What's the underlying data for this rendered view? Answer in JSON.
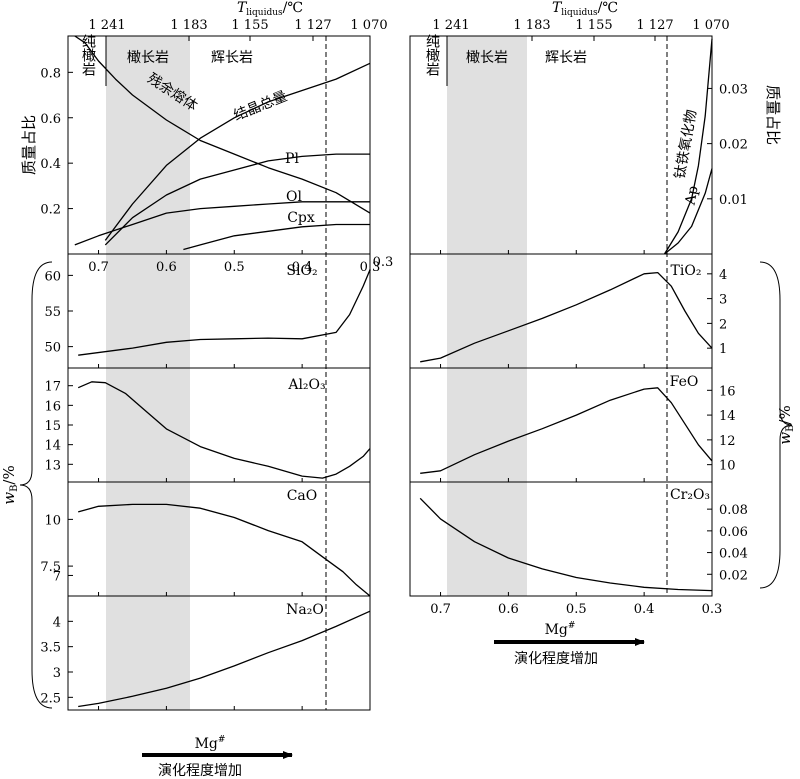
{
  "figure": {
    "top_axis_label_main": "T",
    "top_axis_label_sub": "liquidus",
    "top_axis_label_unit": "/℃",
    "top_ticks": [
      "1 241",
      "1 183",
      "1 155",
      "1 127",
      "1 070"
    ],
    "x_title": "Mg",
    "x_title_sup": "#",
    "evolution_label": "演化程度增加",
    "mass_fraction_label": "质量占比",
    "wb_label_main": "w",
    "wb_label_sub": "B",
    "wb_label_unit": "/%",
    "rock_dunite": "纯橄岩",
    "rock_troctolite": "橄长岩",
    "rock_gabbro": "辉长岩",
    "break_value": "0.3",
    "colors": {
      "shade": "#e0e0e0",
      "line": "#000000",
      "background": "#ffffff"
    }
  },
  "chart_data": [
    {
      "id": "left-top",
      "type": "line",
      "x_ticks": [
        0.7,
        0.6,
        0.5,
        0.4,
        0.3
      ],
      "xlim": [
        0.745,
        0.3
      ],
      "ylim": [
        0,
        0.96
      ],
      "y_ticks": [
        0.2,
        0.4,
        0.6,
        0.8
      ],
      "y_tick_side": "left",
      "ylabel": "质量占比",
      "series": [
        {
          "name": "残余熔体",
          "x": [
            0.735,
            0.72,
            0.7,
            0.675,
            0.65,
            0.6,
            0.55,
            0.5,
            0.45,
            0.4,
            0.35,
            0.3
          ],
          "y": [
            0.96,
            0.93,
            0.85,
            0.77,
            0.7,
            0.59,
            0.5,
            0.44,
            0.38,
            0.33,
            0.27,
            0.18
          ]
        },
        {
          "name": "结晶总量",
          "x": [
            0.69,
            0.65,
            0.6,
            0.55,
            0.5,
            0.45,
            0.4,
            0.35,
            0.3
          ],
          "y": [
            0.06,
            0.22,
            0.39,
            0.51,
            0.6,
            0.67,
            0.72,
            0.77,
            0.84
          ]
        },
        {
          "name": "Pl",
          "x": [
            0.69,
            0.65,
            0.6,
            0.55,
            0.5,
            0.45,
            0.4,
            0.35,
            0.3
          ],
          "y": [
            0.04,
            0.16,
            0.26,
            0.33,
            0.37,
            0.41,
            0.43,
            0.44,
            0.44
          ]
        },
        {
          "name": "Ol",
          "x": [
            0.735,
            0.7,
            0.65,
            0.6,
            0.55,
            0.5,
            0.45,
            0.4,
            0.35,
            0.3
          ],
          "y": [
            0.04,
            0.08,
            0.13,
            0.18,
            0.2,
            0.21,
            0.22,
            0.23,
            0.23,
            0.23
          ]
        },
        {
          "name": "Cpx",
          "x": [
            0.575,
            0.55,
            0.5,
            0.45,
            0.4,
            0.35,
            0.3
          ],
          "y": [
            0.02,
            0.04,
            0.08,
            0.1,
            0.12,
            0.13,
            0.13
          ]
        }
      ]
    },
    {
      "id": "left-sio2",
      "type": "line",
      "xlim": [
        0.745,
        0.3
      ],
      "ylim": [
        47,
        63
      ],
      "y_ticks": [
        50,
        55,
        60
      ],
      "y_tick_side": "left",
      "series": [
        {
          "name": "SiO₂",
          "x": [
            0.73,
            0.65,
            0.6,
            0.55,
            0.5,
            0.45,
            0.4,
            0.35,
            0.33,
            0.31,
            0.3
          ],
          "y": [
            48.8,
            49.8,
            50.6,
            51.0,
            51.1,
            51.2,
            51.1,
            52.0,
            54.5,
            58.5,
            60.8
          ]
        }
      ]
    },
    {
      "id": "left-al2o3",
      "type": "line",
      "xlim": [
        0.745,
        0.3
      ],
      "ylim": [
        12.1,
        17.9
      ],
      "y_ticks": [
        13,
        14,
        15,
        16,
        17
      ],
      "y_tick_side": "left",
      "series": [
        {
          "name": "Al₂O₃",
          "x": [
            0.73,
            0.71,
            0.69,
            0.66,
            0.63,
            0.6,
            0.55,
            0.5,
            0.45,
            0.4,
            0.37,
            0.35,
            0.33,
            0.31,
            0.3
          ],
          "y": [
            16.9,
            17.2,
            17.15,
            16.6,
            15.7,
            14.8,
            13.9,
            13.3,
            12.9,
            12.4,
            12.3,
            12.5,
            12.9,
            13.4,
            13.8
          ]
        }
      ]
    },
    {
      "id": "left-cao",
      "type": "line",
      "xlim": [
        0.745,
        0.3
      ],
      "ylim": [
        5.9,
        12.0
      ],
      "y_ticks": [
        7,
        7.5,
        10
      ],
      "y_tick_labels": [
        "7",
        "7.5",
        "10"
      ],
      "y_tick_side": "left",
      "series": [
        {
          "name": "CaO",
          "x": [
            0.73,
            0.7,
            0.65,
            0.6,
            0.55,
            0.5,
            0.45,
            0.4,
            0.37,
            0.34,
            0.32,
            0.3
          ],
          "y": [
            10.4,
            10.7,
            10.8,
            10.8,
            10.6,
            10.1,
            9.4,
            8.8,
            8.0,
            7.2,
            6.5,
            5.9
          ]
        }
      ]
    },
    {
      "id": "left-na2o",
      "type": "line",
      "xlim": [
        0.745,
        0.3
      ],
      "ylim": [
        2.25,
        4.5
      ],
      "y_ticks": [
        2.5,
        3,
        3.5,
        4
      ],
      "y_tick_side": "left",
      "series": [
        {
          "name": "Na₂O",
          "x": [
            0.73,
            0.7,
            0.65,
            0.6,
            0.55,
            0.5,
            0.45,
            0.4,
            0.35,
            0.3
          ],
          "y": [
            2.32,
            2.38,
            2.52,
            2.68,
            2.88,
            3.12,
            3.38,
            3.62,
            3.9,
            4.2
          ]
        }
      ]
    },
    {
      "id": "right-top",
      "type": "line",
      "xlim": [
        0.745,
        0.3
      ],
      "ylim": [
        0,
        0.0395
      ],
      "y_ticks": [
        0.01,
        0.02,
        0.03
      ],
      "y_tick_side": "right",
      "ylabel": "质量占比",
      "series": [
        {
          "name": "钛铁氧化物",
          "x": [
            0.37,
            0.35,
            0.33,
            0.32,
            0.31,
            0.3
          ],
          "y": [
            0.0,
            0.004,
            0.01,
            0.016,
            0.025,
            0.039
          ]
        },
        {
          "name": "Ap",
          "x": [
            0.37,
            0.35,
            0.33,
            0.31,
            0.3
          ],
          "y": [
            0.0,
            0.002,
            0.005,
            0.011,
            0.0155
          ]
        }
      ]
    },
    {
      "id": "right-tio2",
      "type": "line",
      "xlim": [
        0.745,
        0.3
      ],
      "ylim": [
        0.2,
        4.8
      ],
      "y_ticks": [
        1,
        2,
        3,
        4
      ],
      "y_tick_side": "right",
      "series": [
        {
          "name": "TiO₂",
          "x": [
            0.73,
            0.7,
            0.65,
            0.6,
            0.55,
            0.5,
            0.45,
            0.4,
            0.38,
            0.36,
            0.34,
            0.32,
            0.3
          ],
          "y": [
            0.45,
            0.6,
            1.2,
            1.7,
            2.2,
            2.75,
            3.35,
            4.0,
            4.05,
            3.5,
            2.5,
            1.6,
            1.0
          ]
        }
      ]
    },
    {
      "id": "right-feo",
      "type": "line",
      "xlim": [
        0.745,
        0.3
      ],
      "ylim": [
        8.6,
        17.8
      ],
      "y_ticks": [
        10,
        12,
        14,
        16
      ],
      "y_tick_side": "right",
      "series": [
        {
          "name": "FeO",
          "x": [
            0.73,
            0.7,
            0.65,
            0.6,
            0.55,
            0.5,
            0.45,
            0.4,
            0.38,
            0.36,
            0.34,
            0.32,
            0.3
          ],
          "y": [
            9.3,
            9.5,
            10.8,
            11.9,
            12.9,
            14.0,
            15.2,
            16.1,
            16.2,
            15.0,
            13.3,
            11.6,
            10.3
          ]
        }
      ]
    },
    {
      "id": "right-cr2o3",
      "type": "line",
      "x_ticks": [
        0.7,
        0.6,
        0.5,
        0.4,
        0.3
      ],
      "xlim": [
        0.745,
        0.3
      ],
      "ylim": [
        0.0,
        0.105
      ],
      "y_ticks": [
        0.02,
        0.04,
        0.06,
        0.08
      ],
      "y_tick_side": "right",
      "series": [
        {
          "name": "Cr₂O₃",
          "x": [
            0.73,
            0.7,
            0.65,
            0.6,
            0.55,
            0.5,
            0.45,
            0.4,
            0.35,
            0.3
          ],
          "y": [
            0.09,
            0.071,
            0.05,
            0.035,
            0.025,
            0.017,
            0.012,
            0.008,
            0.006,
            0.005
          ]
        }
      ]
    }
  ]
}
